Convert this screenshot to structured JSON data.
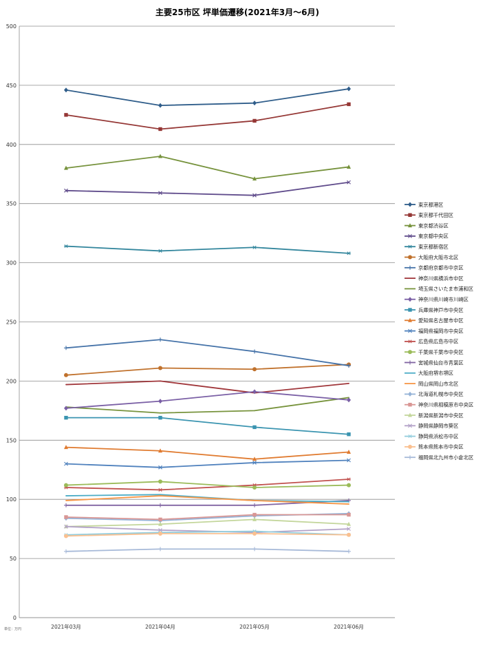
{
  "chart_data": {
    "type": "line",
    "title": "主要25市区 坪単価遷移(2021年3月～6月)",
    "unit_note": "単位：万円",
    "categories": [
      "2021年03月",
      "2021年04月",
      "2021年05月",
      "2021年06月"
    ],
    "ylim": [
      0,
      500
    ],
    "yticks": [
      0,
      50,
      100,
      150,
      200,
      250,
      300,
      350,
      400,
      450,
      500
    ],
    "grid": true,
    "legend_position": "right",
    "series": [
      {
        "name": "東京都港区",
        "values": [
          446,
          433,
          435,
          447
        ],
        "color": "#2f5d8a",
        "marker": "diamond"
      },
      {
        "name": "東京都千代田区",
        "values": [
          425,
          413,
          420,
          434
        ],
        "color": "#953735",
        "marker": "square"
      },
      {
        "name": "東京都渋谷区",
        "values": [
          380,
          390,
          371,
          381
        ],
        "color": "#76923c",
        "marker": "triangle"
      },
      {
        "name": "東京都中央区",
        "values": [
          361,
          359,
          357,
          368
        ],
        "color": "#5f4b8b",
        "marker": "x"
      },
      {
        "name": "東京都新宿区",
        "values": [
          314,
          310,
          313,
          308
        ],
        "color": "#31859c",
        "marker": "star"
      },
      {
        "name": "大阪府大阪市北区",
        "values": [
          205,
          211,
          210,
          214
        ],
        "color": "#c0712c",
        "marker": "circle"
      },
      {
        "name": "京都府京都市中京区",
        "values": [
          228,
          235,
          225,
          213
        ],
        "color": "#4472a8",
        "marker": "plus"
      },
      {
        "name": "神奈川県横浜市中区",
        "values": [
          197,
          200,
          190,
          198
        ],
        "color": "#a0363a",
        "marker": "none"
      },
      {
        "name": "埼玉県さいたま市浦和区",
        "values": [
          178,
          173,
          175,
          186
        ],
        "color": "#77933c",
        "marker": "none"
      },
      {
        "name": "神奈川県川崎市川崎区",
        "values": [
          177,
          183,
          191,
          184
        ],
        "color": "#7a5fa5",
        "marker": "diamond"
      },
      {
        "name": "兵庫県神戸市中央区",
        "values": [
          169,
          169,
          161,
          155
        ],
        "color": "#3a94b0",
        "marker": "square"
      },
      {
        "name": "愛知県名古屋市中区",
        "values": [
          144,
          141,
          134,
          140
        ],
        "color": "#e07b30",
        "marker": "triangle"
      },
      {
        "name": "福岡県福岡市中央区",
        "values": [
          130,
          127,
          131,
          133
        ],
        "color": "#4f81bd",
        "marker": "x"
      },
      {
        "name": "広島県広島市中区",
        "values": [
          110,
          108,
          112,
          117
        ],
        "color": "#c0504d",
        "marker": "star"
      },
      {
        "name": "千葉県千葉市中央区",
        "values": [
          112,
          115,
          110,
          112
        ],
        "color": "#9bbb59",
        "marker": "circle"
      },
      {
        "name": "宮城県仙台市青葉区",
        "values": [
          95,
          95,
          95,
          99
        ],
        "color": "#8064a2",
        "marker": "plus"
      },
      {
        "name": "大阪府堺市堺区",
        "values": [
          103,
          104,
          99,
          98
        ],
        "color": "#4bacc6",
        "marker": "none"
      },
      {
        "name": "岡山県岡山市北区",
        "values": [
          99,
          103,
          99,
          96
        ],
        "color": "#f79646",
        "marker": "none"
      },
      {
        "name": "北海道札幌市中央区",
        "values": [
          84,
          82,
          86,
          88
        ],
        "color": "#95b3d7",
        "marker": "diamond"
      },
      {
        "name": "神奈川県相模原市中央区",
        "values": [
          85,
          83,
          87,
          87
        ],
        "color": "#d99694",
        "marker": "square"
      },
      {
        "name": "新潟県新潟市中央区",
        "values": [
          77,
          79,
          83,
          79
        ],
        "color": "#c3d69b",
        "marker": "triangle"
      },
      {
        "name": "静岡県静岡市葵区",
        "values": [
          77,
          74,
          72,
          75
        ],
        "color": "#b2a1c7",
        "marker": "x"
      },
      {
        "name": "静岡県浜松市中区",
        "values": [
          70,
          72,
          73,
          70
        ],
        "color": "#93cddd",
        "marker": "star"
      },
      {
        "name": "熊本県熊本市中央区",
        "values": [
          69,
          71,
          71,
          70
        ],
        "color": "#fac090",
        "marker": "circle"
      },
      {
        "name": "福岡県北九州市小倉北区",
        "values": [
          56,
          58,
          58,
          56
        ],
        "color": "#a6b9d8",
        "marker": "plus"
      }
    ]
  }
}
